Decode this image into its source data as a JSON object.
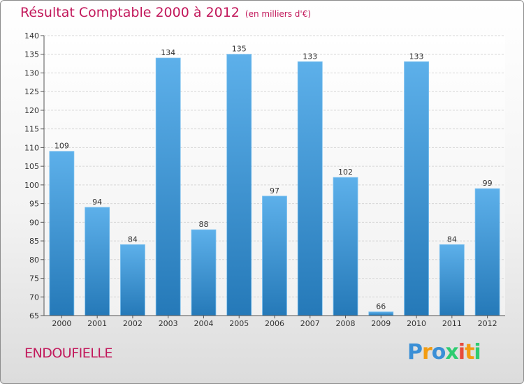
{
  "header": {
    "title": "Résultat Comptable 2000 à 2012",
    "subtitle": "(en milliers d'€)"
  },
  "footer": {
    "commune": "ENDOUFIELLE"
  },
  "logo": {
    "letters": [
      "P",
      "r",
      "o",
      "x",
      "i",
      "t",
      "i"
    ],
    "colors": [
      "#3a8fd6",
      "#f39c12",
      "#3a8fd6",
      "#2ecc71",
      "#e74c3c",
      "#f39c12",
      "#2ecc71"
    ]
  },
  "colors": {
    "bar_top": "#5db0ea",
    "bar_bottom": "#2579b8",
    "title": "#c2185b"
  },
  "chart_data": {
    "type": "bar",
    "title": "Résultat Comptable 2000 à 2012",
    "categories": [
      "2000",
      "2001",
      "2002",
      "2003",
      "2004",
      "2005",
      "2006",
      "2007",
      "2008",
      "2009",
      "2010",
      "2011",
      "2012"
    ],
    "values": [
      109,
      94,
      84,
      134,
      88,
      135,
      97,
      133,
      102,
      66,
      133,
      84,
      99
    ],
    "ylim": [
      65,
      140
    ],
    "yticks": [
      65,
      70,
      75,
      80,
      85,
      90,
      95,
      100,
      105,
      110,
      115,
      120,
      125,
      130,
      135,
      140
    ],
    "grid": true,
    "xlabel": "",
    "ylabel": ""
  }
}
